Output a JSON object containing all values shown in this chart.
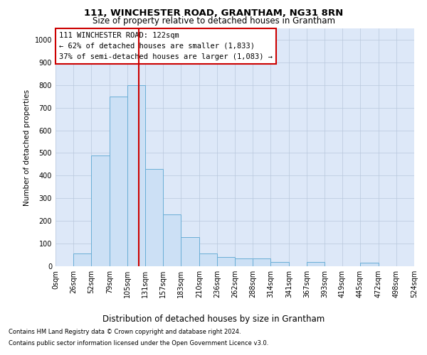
{
  "title": "111, WINCHESTER ROAD, GRANTHAM, NG31 8RN",
  "subtitle": "Size of property relative to detached houses in Grantham",
  "xlabel": "Distribution of detached houses by size in Grantham",
  "ylabel": "Number of detached properties",
  "bin_edges": [
    0,
    26,
    52,
    79,
    105,
    131,
    157,
    183,
    210,
    236,
    262,
    288,
    314,
    341,
    367,
    393,
    419,
    445,
    472,
    498,
    524
  ],
  "bar_heights": [
    0,
    55,
    490,
    750,
    800,
    430,
    230,
    130,
    55,
    40,
    35,
    35,
    20,
    0,
    20,
    0,
    0,
    15,
    0,
    0
  ],
  "bar_color": "#cce0f5",
  "bar_edge_color": "#6aaed6",
  "property_size": 122,
  "property_line_color": "#cc0000",
  "annotation_text": "111 WINCHESTER ROAD: 122sqm\n← 62% of detached houses are smaller (1,833)\n37% of semi-detached houses are larger (1,083) →",
  "annotation_box_color": "#ffffff",
  "annotation_box_edge_color": "#cc0000",
  "ylim": [
    0,
    1050
  ],
  "yticks": [
    0,
    100,
    200,
    300,
    400,
    500,
    600,
    700,
    800,
    900,
    1000
  ],
  "background_color": "#dde8f8",
  "footer_line1": "Contains HM Land Registry data © Crown copyright and database right 2024.",
  "footer_line2": "Contains public sector information licensed under the Open Government Licence v3.0."
}
